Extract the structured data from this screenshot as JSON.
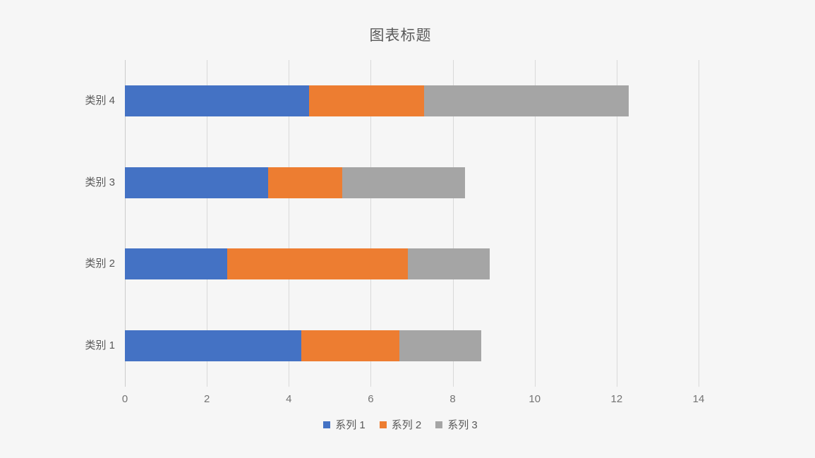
{
  "chart_data": {
    "type": "bar",
    "orientation": "horizontal",
    "stacked": true,
    "title": "图表标题",
    "categories_top_to_bottom": [
      "类别 4",
      "类别 3",
      "类别 2",
      "类别 1"
    ],
    "series": [
      {
        "name": "系列 1",
        "color": "#4472C4",
        "values_top_to_bottom": [
          4.5,
          3.5,
          2.5,
          4.3
        ]
      },
      {
        "name": "系列 2",
        "color": "#ED7D31",
        "values_top_to_bottom": [
          2.8,
          1.8,
          4.4,
          2.4
        ]
      },
      {
        "name": "系列 3",
        "color": "#A5A5A5",
        "values_top_to_bottom": [
          5,
          3,
          2,
          2
        ]
      }
    ],
    "category_totals_top_to_bottom": [
      12.3,
      8.3,
      8.9,
      8.7
    ],
    "x_axis": {
      "min": 0,
      "max": 14,
      "tick_step": 2,
      "tick_labels": [
        "0",
        "2",
        "4",
        "6",
        "8",
        "10",
        "12",
        "14"
      ]
    },
    "legend": {
      "position": "bottom",
      "entries": [
        "系列 1",
        "系列 2",
        "系列 3"
      ]
    },
    "grid": true,
    "colors": {
      "background": "#F6F6F6",
      "gridline": "#D9D9D9",
      "axis_line": "#CCCCCC",
      "title_text": "#595959",
      "category_text": "#595959",
      "tick_text": "#737373",
      "legend_text": "#595959"
    }
  }
}
